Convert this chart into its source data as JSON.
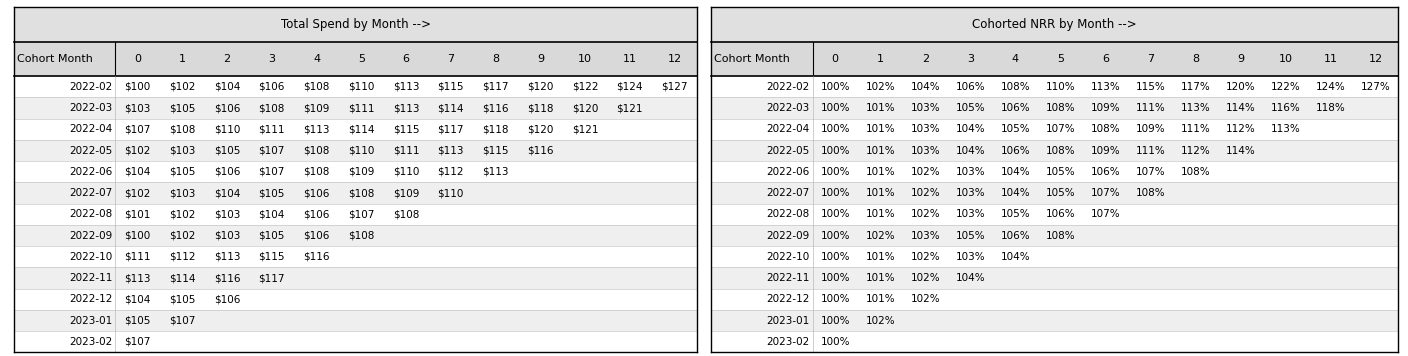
{
  "title1": "Total Spend by Month -->",
  "title2": "Cohorted NRR by Month -->",
  "col_headers": [
    "Cohort Month",
    "0",
    "1",
    "2",
    "3",
    "4",
    "5",
    "6",
    "7",
    "8",
    "9",
    "10",
    "11",
    "12"
  ],
  "rows1": [
    [
      "2022-02",
      "$100",
      "$102",
      "$104",
      "$106",
      "$108",
      "$110",
      "$113",
      "$115",
      "$117",
      "$120",
      "$122",
      "$124",
      "$127"
    ],
    [
      "2022-03",
      "$103",
      "$105",
      "$106",
      "$108",
      "$109",
      "$111",
      "$113",
      "$114",
      "$116",
      "$118",
      "$120",
      "$121",
      ""
    ],
    [
      "2022-04",
      "$107",
      "$108",
      "$110",
      "$111",
      "$113",
      "$114",
      "$115",
      "$117",
      "$118",
      "$120",
      "$121",
      "",
      ""
    ],
    [
      "2022-05",
      "$102",
      "$103",
      "$105",
      "$107",
      "$108",
      "$110",
      "$111",
      "$113",
      "$115",
      "$116",
      "",
      "",
      ""
    ],
    [
      "2022-06",
      "$104",
      "$105",
      "$106",
      "$107",
      "$108",
      "$109",
      "$110",
      "$112",
      "$113",
      "",
      "",
      "",
      ""
    ],
    [
      "2022-07",
      "$102",
      "$103",
      "$104",
      "$105",
      "$106",
      "$108",
      "$109",
      "$110",
      "",
      "",
      "",
      "",
      ""
    ],
    [
      "2022-08",
      "$101",
      "$102",
      "$103",
      "$104",
      "$106",
      "$107",
      "$108",
      "",
      "",
      "",
      "",
      "",
      ""
    ],
    [
      "2022-09",
      "$100",
      "$102",
      "$103",
      "$105",
      "$106",
      "$108",
      "",
      "",
      "",
      "",
      "",
      "",
      ""
    ],
    [
      "2022-10",
      "$111",
      "$112",
      "$113",
      "$115",
      "$116",
      "",
      "",
      "",
      "",
      "",
      "",
      "",
      ""
    ],
    [
      "2022-11",
      "$113",
      "$114",
      "$116",
      "$117",
      "",
      "",
      "",
      "",
      "",
      "",
      "",
      "",
      ""
    ],
    [
      "2022-12",
      "$104",
      "$105",
      "$106",
      "",
      "",
      "",
      "",
      "",
      "",
      "",
      "",
      "",
      ""
    ],
    [
      "2023-01",
      "$105",
      "$107",
      "",
      "",
      "",
      "",
      "",
      "",
      "",
      "",
      "",
      "",
      ""
    ],
    [
      "2023-02",
      "$107",
      "",
      "",
      "",
      "",
      "",
      "",
      "",
      "",
      "",
      "",
      "",
      ""
    ]
  ],
  "rows2": [
    [
      "2022-02",
      "100%",
      "102%",
      "104%",
      "106%",
      "108%",
      "110%",
      "113%",
      "115%",
      "117%",
      "120%",
      "122%",
      "124%",
      "127%"
    ],
    [
      "2022-03",
      "100%",
      "101%",
      "103%",
      "105%",
      "106%",
      "108%",
      "109%",
      "111%",
      "113%",
      "114%",
      "116%",
      "118%",
      ""
    ],
    [
      "2022-04",
      "100%",
      "101%",
      "103%",
      "104%",
      "105%",
      "107%",
      "108%",
      "109%",
      "111%",
      "112%",
      "113%",
      "",
      ""
    ],
    [
      "2022-05",
      "100%",
      "101%",
      "103%",
      "104%",
      "106%",
      "108%",
      "109%",
      "111%",
      "112%",
      "114%",
      "",
      "",
      ""
    ],
    [
      "2022-06",
      "100%",
      "101%",
      "102%",
      "103%",
      "104%",
      "105%",
      "106%",
      "107%",
      "108%",
      "",
      "",
      "",
      ""
    ],
    [
      "2022-07",
      "100%",
      "101%",
      "102%",
      "103%",
      "104%",
      "105%",
      "107%",
      "108%",
      "",
      "",
      "",
      "",
      ""
    ],
    [
      "2022-08",
      "100%",
      "101%",
      "102%",
      "103%",
      "105%",
      "106%",
      "107%",
      "",
      "",
      "",
      "",
      "",
      ""
    ],
    [
      "2022-09",
      "100%",
      "102%",
      "103%",
      "105%",
      "106%",
      "108%",
      "",
      "",
      "",
      "",
      "",
      "",
      ""
    ],
    [
      "2022-10",
      "100%",
      "101%",
      "102%",
      "103%",
      "104%",
      "",
      "",
      "",
      "",
      "",
      "",
      "",
      ""
    ],
    [
      "2022-11",
      "100%",
      "101%",
      "102%",
      "104%",
      "",
      "",
      "",
      "",
      "",
      "",
      "",
      "",
      ""
    ],
    [
      "2022-12",
      "100%",
      "101%",
      "102%",
      "",
      "",
      "",
      "",
      "",
      "",
      "",
      "",
      "",
      ""
    ],
    [
      "2023-01",
      "100%",
      "102%",
      "",
      "",
      "",
      "",
      "",
      "",
      "",
      "",
      "",
      "",
      ""
    ],
    [
      "2023-02",
      "100%",
      "",
      "",
      "",
      "",
      "",
      "",
      "",
      "",
      "",
      "",
      "",
      ""
    ]
  ],
  "header_bg": "#d9d9d9",
  "row_bg_even": "#ffffff",
  "row_bg_odd": "#efefef",
  "title_bg": "#e0e0e0",
  "sep_line_color": "#bbbbbb",
  "border_color": "#000000",
  "title_fontsize": 8.5,
  "header_fontsize": 8,
  "cell_fontsize": 7.5,
  "figsize": [
    14.08,
    3.56
  ],
  "dpi": 100
}
